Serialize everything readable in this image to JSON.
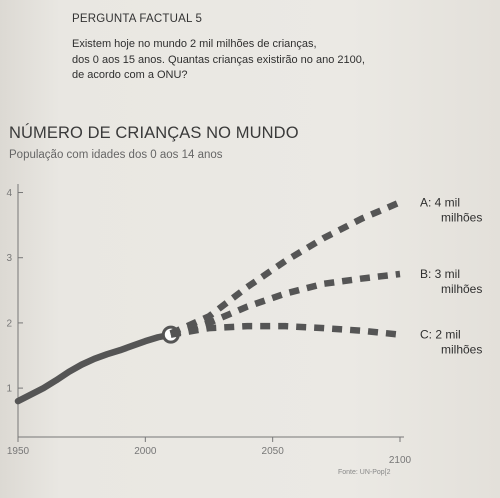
{
  "question": {
    "heading": "PERGUNTA FACTUAL 5",
    "lines": [
      "Existem hoje no mundo 2 mil milhões de crianças,",
      "dos 0 aos 15 anos. Quantas crianças existirão no ano 2100,",
      "de acordo com a ONU?"
    ]
  },
  "chart_data": {
    "type": "line",
    "title": "NÚMERO DE CRIANÇAS NO MUNDO",
    "subtitle": "População com idades dos 0 aos 14 anos",
    "xlabel": "",
    "ylabel": "",
    "xlim": [
      1950,
      2100
    ],
    "ylim": [
      0.25,
      4.1
    ],
    "x_ticks": [
      1950,
      2000,
      2050,
      2100
    ],
    "y_ticks": [
      1,
      2,
      3,
      4
    ],
    "grid": false,
    "historical": {
      "x": [
        1950,
        1955,
        1960,
        1965,
        1970,
        1975,
        1980,
        1985,
        1990,
        1995,
        2000,
        2005,
        2010
      ],
      "y": [
        0.8,
        0.9,
        1.0,
        1.12,
        1.25,
        1.36,
        1.45,
        1.52,
        1.58,
        1.65,
        1.72,
        1.78,
        1.82
      ]
    },
    "current_point": {
      "x": 2010,
      "y": 1.82
    },
    "scenarios": [
      {
        "id": "A",
        "label_letter": "A:",
        "label_lines": [
          "4 mil",
          "milhões"
        ],
        "x": [
          2010,
          2025,
          2040,
          2055,
          2070,
          2085,
          2100
        ],
        "y": [
          1.84,
          2.1,
          2.55,
          2.95,
          3.3,
          3.6,
          3.85
        ]
      },
      {
        "id": "B",
        "label_letter": "B:",
        "label_lines": [
          "3 mil",
          "milhões"
        ],
        "x": [
          2010,
          2025,
          2040,
          2055,
          2070,
          2085,
          2100
        ],
        "y": [
          1.82,
          2.0,
          2.25,
          2.45,
          2.6,
          2.68,
          2.75
        ]
      },
      {
        "id": "C",
        "label_letter": "C:",
        "label_lines": [
          "2 mil",
          "milhões"
        ],
        "x": [
          2010,
          2025,
          2040,
          2055,
          2070,
          2085,
          2100
        ],
        "y": [
          1.82,
          1.92,
          1.95,
          1.95,
          1.92,
          1.88,
          1.82
        ]
      }
    ],
    "source": "Fonte: UN-Pop[2"
  },
  "colors": {
    "line": "#555555",
    "axis": "#777777",
    "marker_fill": "#ffffff"
  }
}
